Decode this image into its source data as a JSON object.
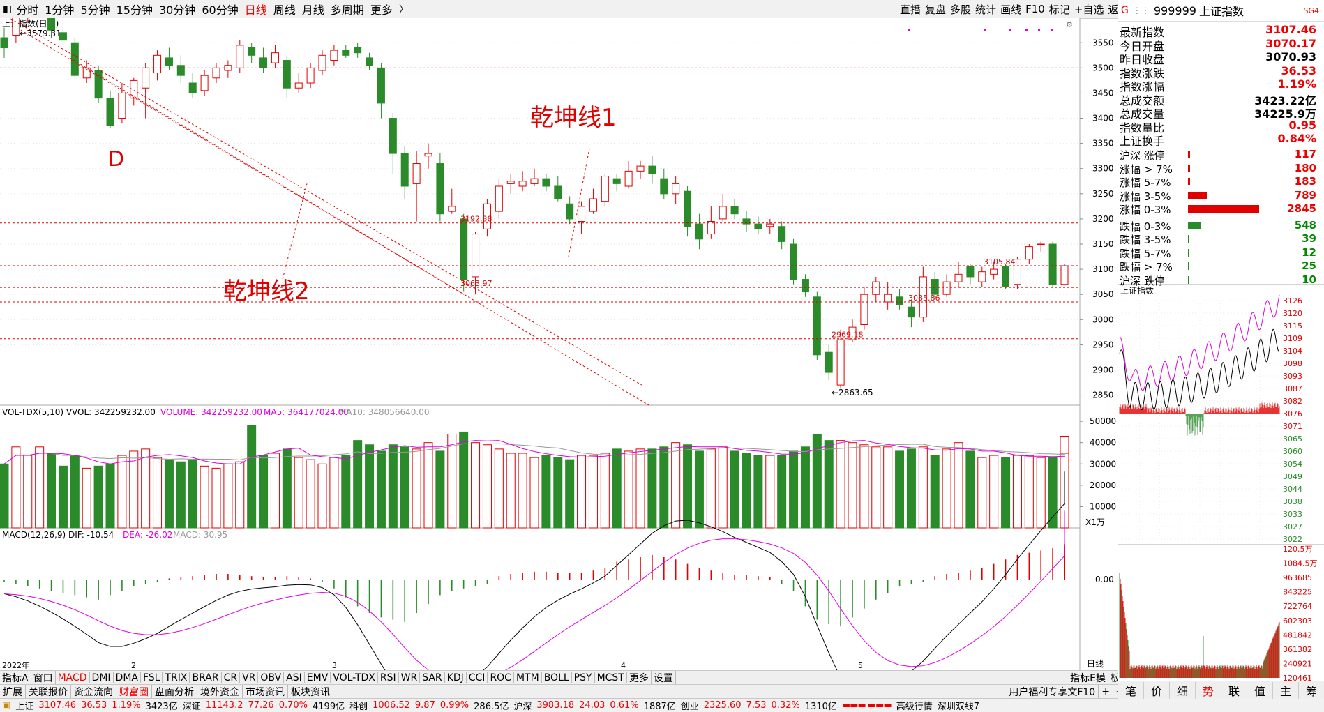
{
  "toolbar": {
    "periods": [
      "分时",
      "1分钟",
      "5分钟",
      "15分钟",
      "30分钟",
      "60分钟",
      "日线",
      "周线",
      "月线",
      "多周期",
      "更多"
    ],
    "active_period": "日线",
    "right_tools": [
      "直播",
      "复盘",
      "多股",
      "统计",
      "画线",
      "F10",
      "标记",
      "+自选",
      "返回"
    ]
  },
  "chart": {
    "title": "上证指数(日线)",
    "price_axis": [
      "3550",
      "3500",
      "3450",
      "3400",
      "3350",
      "3300",
      "3250",
      "3200",
      "3150",
      "3100",
      "3050",
      "3000",
      "2950",
      "2900",
      "2850"
    ],
    "high_label": "3579.31",
    "low_label": "2863.65",
    "price_labels": [
      "3192.38",
      "3063.97",
      "3085.86",
      "2969.18",
      "3105.84"
    ],
    "annotations": [
      "乾坤线1",
      "乾坤线2",
      "D"
    ],
    "month_labels": [
      "2022年",
      "2",
      "3",
      "4",
      "5"
    ]
  },
  "volume": {
    "header_name": "VOL-TDX(5,10)",
    "vvol": "VVOL: 342259232.00",
    "volume": "VOLUME: 342259232.00",
    "ma5": "MA5: 364177024.00",
    "ma10": "MA10: 348056640.00",
    "axis": [
      "50000",
      "40000",
      "30000",
      "20000",
      "10000"
    ],
    "unit": "X1万"
  },
  "macd": {
    "header_name": "MACD(12,26,9)",
    "dif": "DIF: -10.54",
    "dea": "DEA: -26.02",
    "macd": "MACD: 30.95",
    "axis_zero": "0.00",
    "zoom_label": "日线"
  },
  "indicator_tabs": [
    "指标A",
    "窗口",
    "MACD",
    "DMI",
    "DMA",
    "FSL",
    "TRIX",
    "BRAR",
    "CR",
    "VR",
    "OBV",
    "ASI",
    "EMV",
    "VOL-TDX",
    "RSI",
    "WR",
    "SAR",
    "KDJ",
    "CCI",
    "ROC",
    "MTM",
    "BOLL",
    "PSY",
    "MCST",
    "更多",
    "设置"
  ],
  "active_indicator": "MACD",
  "info_tabs": [
    "扩展",
    "关联报价",
    "资金流向",
    "财富圈",
    "盘面分析",
    "境外资金",
    "市场资讯",
    "板块资讯"
  ],
  "active_info_tab": "财富圈",
  "right_info_links": [
    "指标E模",
    "板",
    "+",
    "-"
  ],
  "news_ticker": "用户福利专享文F10",
  "status_bar": [
    {
      "name": "上证",
      "price": "3107.46",
      "chg": "36.53",
      "pct": "1.19%",
      "amt": "3423亿"
    },
    {
      "name": "深证",
      "price": "11143.2",
      "chg": "77.26",
      "pct": "0.70%",
      "amt": "4199亿"
    },
    {
      "name": "科创",
      "price": "1006.52",
      "chg": "9.87",
      "pct": "0.99%",
      "amt": "286.5亿"
    },
    {
      "name": "沪深",
      "price": "3983.18",
      "chg": "24.03",
      "pct": "0.61%",
      "amt": "1887亿"
    },
    {
      "name": "创业",
      "price": "2325.60",
      "chg": "7.53",
      "pct": "0.32%",
      "amt": "1310亿"
    }
  ],
  "status_extra": [
    "高级行情",
    "深圳双线7"
  ],
  "quote_panel": {
    "code": "999999",
    "name": "上证指数",
    "badge": "SG4",
    "rows": [
      {
        "k": "最新指数",
        "v": "3107.46",
        "c": "red"
      },
      {
        "k": "今日开盘",
        "v": "3070.17",
        "c": "red"
      },
      {
        "k": "昨日收盘",
        "v": "3070.93",
        "c": "black"
      },
      {
        "k": "指数涨跌",
        "v": "36.53",
        "c": "red"
      },
      {
        "k": "指数涨幅",
        "v": "1.19%",
        "c": "red"
      },
      {
        "k": "总成交额",
        "v": "3423.22亿",
        "c": "black"
      },
      {
        "k": "总成交量",
        "v": "34225.9万",
        "c": "black"
      },
      {
        "k": "指数量比",
        "v": "0.95",
        "c": "red"
      },
      {
        "k": "上证换手",
        "v": "0.84%",
        "c": "red"
      }
    ],
    "breadth_up": [
      {
        "k": "沪深 涨停",
        "v": "117",
        "bar": 0.02
      },
      {
        "k": "涨幅 > 7%",
        "v": "180",
        "bar": 0.02
      },
      {
        "k": "涨幅 5-7%",
        "v": "183",
        "bar": 0.02
      },
      {
        "k": "涨幅 3-5%",
        "v": "789",
        "bar": 0.18
      },
      {
        "k": "涨幅 0-3%",
        "v": "2845",
        "bar": 0.68
      }
    ],
    "breadth_down": [
      {
        "k": "跌幅 0-3%",
        "v": "548",
        "bar": 0.12
      },
      {
        "k": "跌幅 3-5%",
        "v": "39",
        "bar": 0.005
      },
      {
        "k": "跌幅 5-7%",
        "v": "12",
        "bar": 0.005
      },
      {
        "k": "跌幅 > 7%",
        "v": "25",
        "bar": 0.005
      },
      {
        "k": "沪深 跌停",
        "v": "10",
        "bar": 0.005
      }
    ],
    "mini_title": "上证指数",
    "mini_axis": [
      "3126",
      "3120",
      "3115",
      "3109",
      "3104",
      "3098",
      "3093",
      "3087",
      "3082",
      "3076",
      "3071",
      "3065",
      "3060",
      "3054",
      "3049",
      "3044",
      "3038",
      "3033",
      "3027",
      "3022"
    ],
    "vol_axis": [
      "120.5万",
      "1084.5万",
      "963685",
      "843225",
      "722764",
      "602303",
      "481842",
      "361382",
      "240921",
      "120461"
    ],
    "bottom_tabs": [
      "笔",
      "价",
      "细",
      "势",
      "联",
      "值",
      "主",
      "筹"
    ],
    "active_bottom_tab": "势"
  },
  "colors": {
    "up": "#e00000",
    "down": "#2b8b2b",
    "ma_white": "#000000",
    "ma_magenta": "#e000e0",
    "dash": "#e00000"
  }
}
